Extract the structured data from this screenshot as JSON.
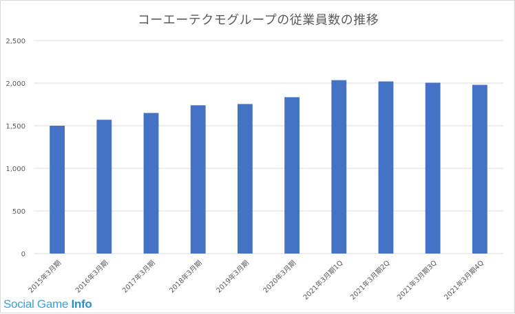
{
  "chart_data": {
    "type": "bar",
    "title": "コーエーテクモグループの従業員数の推移",
    "categories": [
      "2015年3月期",
      "2016年3月期",
      "2017年3月期",
      "2018年3月期",
      "2019年3月期",
      "2020年3月期",
      "2021年3月期1Q",
      "2021年3月期2Q",
      "2021年3月期3Q",
      "2021年3月期4Q"
    ],
    "values": [
      1500,
      1570,
      1650,
      1740,
      1755,
      1835,
      2035,
      2020,
      2005,
      1980
    ],
    "ylim": [
      0,
      2500
    ],
    "yticks": [
      0,
      500,
      1000,
      1500,
      2000,
      2500
    ],
    "ytick_labels": [
      "0",
      "500",
      "1,000",
      "1,500",
      "2,000",
      "2,500"
    ],
    "grid": true,
    "bar_color": "#4472c4",
    "grid_color": "#d9d9d9"
  },
  "watermark": {
    "part1": "Social Game ",
    "part2": "Info"
  }
}
